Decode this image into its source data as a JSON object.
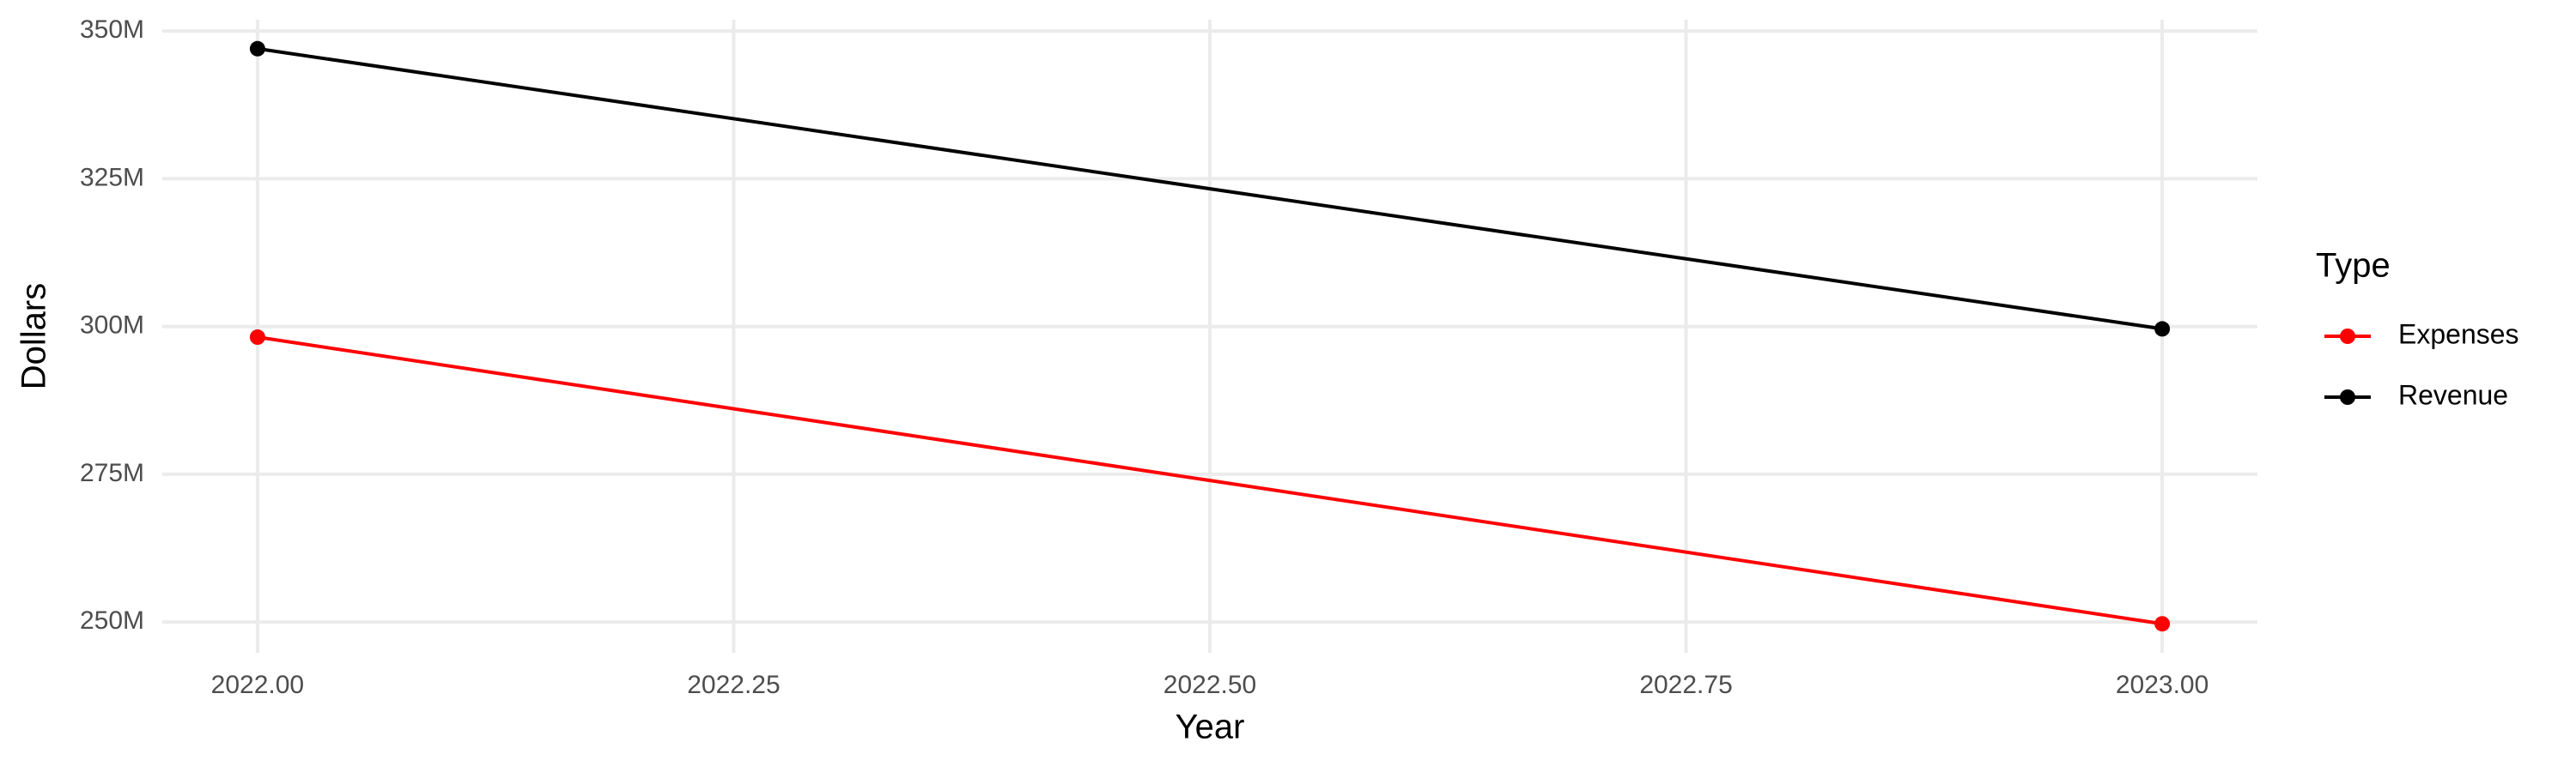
{
  "chart_data": {
    "type": "line",
    "x_label": "Year",
    "y_label": "Dollars",
    "legend_title": "Type",
    "x": [
      2022,
      2023
    ],
    "series": [
      {
        "name": "Expenses",
        "color": "#ff0000",
        "values": [
          298200000,
          249700000
        ]
      },
      {
        "name": "Revenue",
        "color": "#000000",
        "values": [
          347000000,
          299600000
        ]
      }
    ],
    "xlim": [
      2021.95,
      2023.05
    ],
    "xticks": [
      {
        "value": 2022,
        "label": "2022.00"
      },
      {
        "value": 2022.25,
        "label": "2022.25"
      },
      {
        "value": 2022.5,
        "label": "2022.50"
      },
      {
        "value": 2022.75,
        "label": "2022.75"
      },
      {
        "value": 2023,
        "label": "2023.00"
      }
    ],
    "ylim": [
      244800000,
      351900000
    ],
    "yticks": [
      {
        "value": 250000000,
        "label": "250M"
      },
      {
        "value": 275000000,
        "label": "275M"
      },
      {
        "value": 300000000,
        "label": "300M"
      },
      {
        "value": 325000000,
        "label": "325M"
      },
      {
        "value": 350000000,
        "label": "350M"
      }
    ],
    "grid": true,
    "legend_position": "right"
  }
}
